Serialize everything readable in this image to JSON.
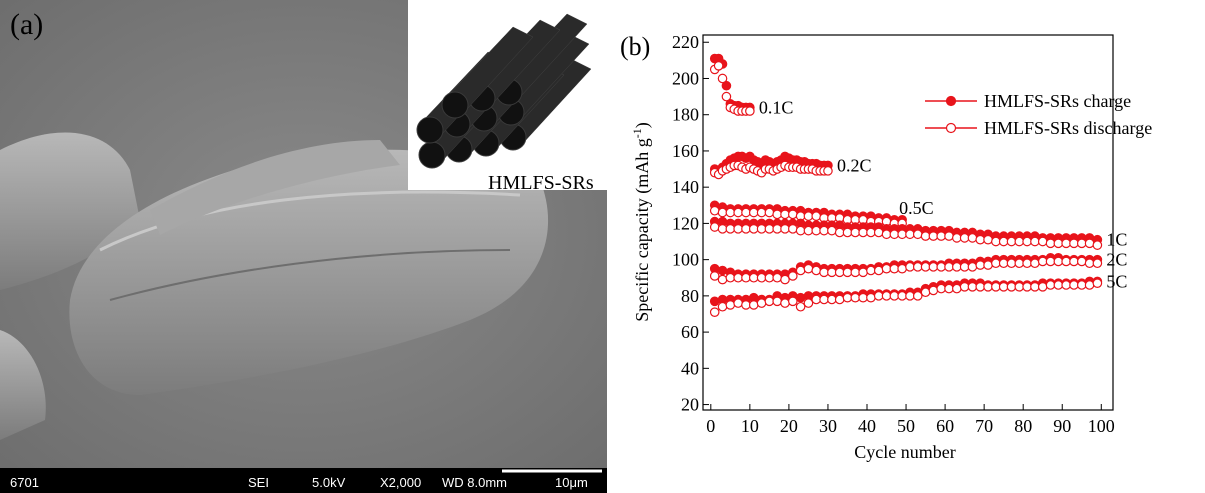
{
  "panel_a": {
    "label": "(a)",
    "inset_label": "HMLFS-SRs",
    "footer": [
      "6701",
      "SEI",
      "5.0kV",
      "X2,000",
      "WD 8.0mm",
      "10μm"
    ]
  },
  "chart_data": {
    "type": "scatter",
    "panel_label": "(b)",
    "x_label": "Cycle number",
    "y_label": "Specific capacity (mAh g",
    "y_label_sup": "-1",
    "y_label_end": ")",
    "xlim": [
      -2,
      103
    ],
    "xticks": [
      0,
      10,
      20,
      30,
      40,
      50,
      60,
      70,
      80,
      90,
      100
    ],
    "ylim": [
      17,
      224
    ],
    "yticks": [
      20,
      40,
      60,
      80,
      100,
      120,
      140,
      160,
      180,
      200,
      220
    ],
    "series": [
      {
        "name": "HMLFS-SRs charge",
        "color": "#e8141b",
        "filled": true
      },
      {
        "name": "HMLFS-SRs discharge",
        "color": "#e8141b",
        "filled": false
      }
    ],
    "rates": [
      {
        "label": "0.1C",
        "x": [
          1,
          2,
          3,
          4,
          5,
          6,
          7,
          8,
          9,
          10
        ],
        "charge": [
          211,
          211,
          208,
          196,
          186,
          185,
          185,
          184,
          184,
          184
        ],
        "discharge": [
          205,
          207,
          200,
          190,
          184,
          183,
          182,
          182,
          182,
          182
        ]
      },
      {
        "label": "0.2C",
        "x": [
          1,
          2,
          3,
          4,
          5,
          6,
          7,
          8,
          9,
          10,
          11,
          12,
          13,
          14,
          15,
          16,
          17,
          18,
          19,
          20,
          21,
          22,
          23,
          24,
          25,
          26,
          27,
          28,
          29,
          30
        ],
        "charge": [
          150,
          149,
          151,
          153,
          155,
          156,
          157,
          157,
          156,
          157,
          155,
          154,
          153,
          155,
          154,
          153,
          154,
          155,
          157,
          156,
          155,
          155,
          154,
          154,
          153,
          153,
          153,
          152,
          152,
          152
        ],
        "discharge": [
          148,
          147,
          149,
          150,
          151,
          152,
          152,
          151,
          150,
          151,
          150,
          149,
          148,
          150,
          150,
          149,
          150,
          151,
          152,
          151,
          151,
          151,
          150,
          150,
          150,
          150,
          149,
          149,
          149,
          149
        ]
      },
      {
        "label": "0.5C",
        "x": [
          1,
          3,
          5,
          7,
          9,
          11,
          13,
          15,
          17,
          19,
          21,
          23,
          25,
          27,
          29,
          31,
          33,
          35,
          37,
          39,
          41,
          43,
          45,
          47,
          49
        ],
        "charge": [
          130,
          129,
          128,
          128,
          128,
          128,
          128,
          128,
          128,
          127,
          127,
          127,
          126,
          126,
          126,
          125,
          125,
          125,
          124,
          124,
          124,
          123,
          123,
          122,
          122
        ],
        "discharge": [
          127,
          126,
          126,
          126,
          126,
          126,
          126,
          126,
          125,
          125,
          125,
          124,
          124,
          124,
          123,
          123,
          123,
          122,
          122,
          122,
          121,
          121,
          121,
          120,
          120
        ]
      },
      {
        "label": "1C",
        "x": [
          1,
          3,
          5,
          7,
          9,
          11,
          13,
          15,
          17,
          19,
          21,
          23,
          25,
          27,
          29,
          31,
          33,
          35,
          37,
          39,
          41,
          43,
          45,
          47,
          49,
          51,
          53,
          55,
          57,
          59,
          61,
          63,
          65,
          67,
          69,
          71,
          73,
          75,
          77,
          79,
          81,
          83,
          85,
          87,
          89,
          91,
          93,
          95,
          97,
          99
        ],
        "charge": [
          121,
          121,
          120,
          120,
          120,
          120,
          120,
          120,
          120,
          120,
          120,
          120,
          119,
          119,
          119,
          119,
          119,
          118,
          118,
          118,
          118,
          118,
          117,
          117,
          117,
          117,
          117,
          116,
          116,
          116,
          116,
          115,
          115,
          115,
          114,
          114,
          113,
          113,
          113,
          113,
          113,
          113,
          112,
          112,
          112,
          112,
          112,
          112,
          112,
          111
        ],
        "discharge": [
          118,
          117,
          117,
          117,
          117,
          117,
          117,
          117,
          117,
          117,
          117,
          116,
          116,
          116,
          116,
          116,
          115,
          115,
          115,
          115,
          115,
          115,
          114,
          114,
          114,
          114,
          114,
          113,
          113,
          113,
          113,
          112,
          112,
          112,
          111,
          111,
          110,
          110,
          110,
          110,
          110,
          110,
          110,
          109,
          109,
          109,
          109,
          109,
          109,
          108
        ]
      },
      {
        "label": "2C",
        "x": [
          1,
          3,
          5,
          7,
          9,
          11,
          13,
          15,
          17,
          19,
          21,
          23,
          25,
          27,
          29,
          31,
          33,
          35,
          37,
          39,
          41,
          43,
          45,
          47,
          49,
          51,
          53,
          55,
          57,
          59,
          61,
          63,
          65,
          67,
          69,
          71,
          73,
          75,
          77,
          79,
          81,
          83,
          85,
          87,
          89,
          91,
          93,
          95,
          97,
          99
        ],
        "charge": [
          95,
          94,
          93,
          92,
          92,
          92,
          92,
          92,
          92,
          92,
          93,
          96,
          97,
          96,
          95,
          95,
          95,
          95,
          95,
          95,
          95,
          96,
          96,
          97,
          97,
          97,
          97,
          97,
          97,
          97,
          98,
          98,
          98,
          98,
          99,
          99,
          100,
          100,
          100,
          100,
          100,
          100,
          100,
          101,
          101,
          100,
          100,
          100,
          100,
          100
        ],
        "discharge": [
          91,
          89,
          90,
          90,
          90,
          90,
          90,
          90,
          90,
          89,
          91,
          94,
          95,
          94,
          93,
          93,
          93,
          93,
          93,
          93,
          94,
          94,
          95,
          95,
          95,
          96,
          96,
          96,
          96,
          96,
          96,
          96,
          96,
          96,
          97,
          97,
          98,
          98,
          98,
          98,
          98,
          98,
          99,
          99,
          99,
          99,
          99,
          99,
          98,
          98
        ]
      },
      {
        "label": "5C",
        "x": [
          1,
          3,
          5,
          7,
          9,
          11,
          13,
          15,
          17,
          19,
          21,
          23,
          25,
          27,
          29,
          31,
          33,
          35,
          37,
          39,
          41,
          43,
          45,
          47,
          49,
          51,
          53,
          55,
          57,
          59,
          61,
          63,
          65,
          67,
          69,
          71,
          73,
          75,
          77,
          79,
          81,
          83,
          85,
          87,
          89,
          91,
          93,
          95,
          97,
          99
        ],
        "charge": [
          77,
          78,
          78,
          78,
          78,
          79,
          78,
          78,
          80,
          79,
          80,
          79,
          80,
          80,
          80,
          80,
          80,
          80,
          80,
          81,
          81,
          81,
          81,
          81,
          81,
          82,
          82,
          84,
          85,
          86,
          86,
          86,
          87,
          87,
          87,
          86,
          86,
          86,
          86,
          86,
          86,
          86,
          87,
          87,
          87,
          87,
          87,
          87,
          88,
          88
        ],
        "discharge": [
          71,
          74,
          75,
          76,
          75,
          75,
          76,
          77,
          77,
          76,
          77,
          74,
          76,
          78,
          78,
          78,
          78,
          79,
          79,
          79,
          79,
          80,
          80,
          80,
          80,
          80,
          80,
          82,
          83,
          84,
          84,
          84,
          85,
          85,
          85,
          85,
          85,
          85,
          85,
          85,
          85,
          85,
          85,
          86,
          86,
          86,
          86,
          86,
          86,
          87
        ]
      }
    ]
  }
}
